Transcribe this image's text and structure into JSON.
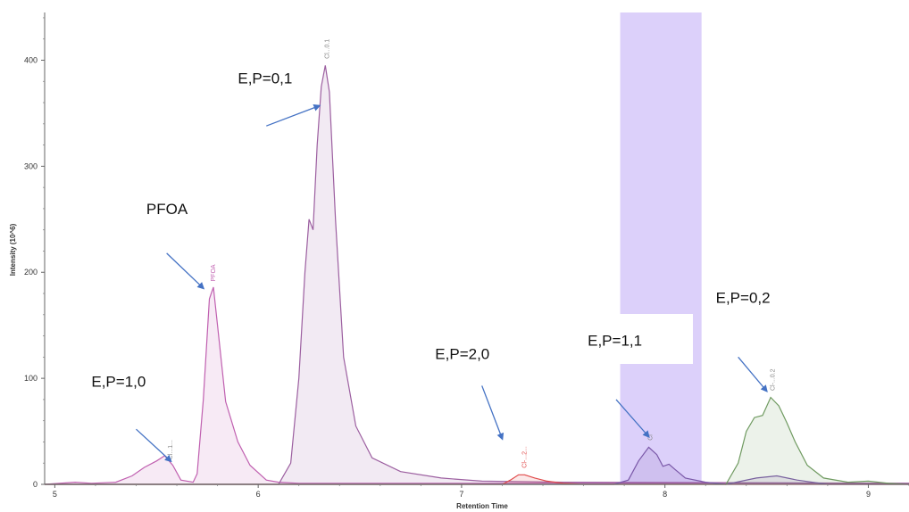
{
  "chart_data": {
    "type": "area",
    "xlabel": "Retention Time",
    "ylabel": "Intensity (10^6)",
    "xlim": [
      4.95,
      9.2
    ],
    "ylim": [
      0,
      445
    ],
    "x_ticks": [
      5,
      6,
      7,
      8,
      9
    ],
    "y_ticks": [
      0,
      100,
      200,
      300,
      400
    ],
    "grid": false,
    "highlight_band": {
      "x_range": [
        7.78,
        8.18
      ],
      "color": "#dcd0fa"
    },
    "series": [
      {
        "color": "#c060b0",
        "points": [
          [
            4.95,
            0
          ],
          [
            5.1,
            2
          ],
          [
            5.18,
            1
          ],
          [
            5.3,
            2
          ],
          [
            5.38,
            8
          ],
          [
            5.44,
            16
          ],
          [
            5.5,
            22
          ],
          [
            5.54,
            27
          ],
          [
            5.58,
            18
          ],
          [
            5.62,
            4
          ],
          [
            5.68,
            2
          ],
          [
            5.7,
            10
          ],
          [
            5.73,
            80
          ],
          [
            5.76,
            175
          ],
          [
            5.78,
            186
          ],
          [
            5.8,
            150
          ],
          [
            5.84,
            78
          ],
          [
            5.9,
            40
          ],
          [
            5.96,
            18
          ],
          [
            6.04,
            4
          ],
          [
            6.1,
            2
          ],
          [
            6.2,
            1
          ],
          [
            7.0,
            1
          ],
          [
            9.2,
            1
          ]
        ]
      },
      {
        "color": "#9c5fa0",
        "points": [
          [
            4.95,
            0
          ],
          [
            6.1,
            0
          ],
          [
            6.16,
            20
          ],
          [
            6.2,
            100
          ],
          [
            6.23,
            200
          ],
          [
            6.25,
            250
          ],
          [
            6.27,
            240
          ],
          [
            6.29,
            320
          ],
          [
            6.31,
            375
          ],
          [
            6.33,
            395
          ],
          [
            6.35,
            370
          ],
          [
            6.38,
            250
          ],
          [
            6.42,
            120
          ],
          [
            6.48,
            55
          ],
          [
            6.56,
            25
          ],
          [
            6.7,
            12
          ],
          [
            6.9,
            6
          ],
          [
            7.1,
            3
          ],
          [
            7.5,
            2
          ],
          [
            9.2,
            1
          ]
        ]
      },
      {
        "color": "#e04a4a",
        "points": [
          [
            4.95,
            0
          ],
          [
            7.2,
            0
          ],
          [
            7.24,
            4
          ],
          [
            7.28,
            9
          ],
          [
            7.31,
            9
          ],
          [
            7.36,
            6
          ],
          [
            7.42,
            3
          ],
          [
            7.5,
            1
          ],
          [
            7.6,
            0
          ],
          [
            9.2,
            0
          ]
        ]
      },
      {
        "color": "#7a58a8",
        "points": [
          [
            4.95,
            0
          ],
          [
            7.75,
            0
          ],
          [
            7.82,
            4
          ],
          [
            7.87,
            22
          ],
          [
            7.92,
            35
          ],
          [
            7.96,
            28
          ],
          [
            7.99,
            17
          ],
          [
            8.02,
            19
          ],
          [
            8.05,
            14
          ],
          [
            8.1,
            6
          ],
          [
            8.2,
            2
          ],
          [
            8.3,
            0
          ],
          [
            8.45,
            6
          ],
          [
            8.55,
            8
          ],
          [
            8.65,
            4
          ],
          [
            8.8,
            0
          ],
          [
            9.2,
            0
          ]
        ]
      },
      {
        "color": "#6f9a60",
        "points": [
          [
            4.95,
            0
          ],
          [
            8.3,
            0
          ],
          [
            8.36,
            20
          ],
          [
            8.4,
            50
          ],
          [
            8.44,
            63
          ],
          [
            8.48,
            65
          ],
          [
            8.52,
            82
          ],
          [
            8.56,
            74
          ],
          [
            8.6,
            58
          ],
          [
            8.64,
            40
          ],
          [
            8.7,
            18
          ],
          [
            8.78,
            6
          ],
          [
            8.9,
            2
          ],
          [
            9.0,
            3
          ],
          [
            9.1,
            1
          ],
          [
            9.2,
            0
          ]
        ]
      }
    ],
    "peak_tags": [
      {
        "x": 5.57,
        "y": 20,
        "text": "Cl...1...",
        "color": "#888888"
      },
      {
        "x": 5.78,
        "y": 188,
        "text": "PFOA",
        "color": "#c060b0"
      },
      {
        "x": 6.34,
        "y": 398,
        "text": "Cl...0.1",
        "color": "#888888"
      },
      {
        "x": 7.31,
        "y": 12,
        "text": "Cl-...2...",
        "color": "#e04a4a"
      },
      {
        "x": 7.93,
        "y": 38,
        "text": "Cl",
        "color": "#888888"
      },
      {
        "x": 8.53,
        "y": 85,
        "text": "Cl-...0.2",
        "color": "#888888"
      }
    ],
    "annotations": [
      {
        "text": "E,P=0,1",
        "text_x": 5.9,
        "text_y": 378,
        "arrow": [
          [
            6.04,
            338
          ],
          [
            6.3,
            357
          ]
        ]
      },
      {
        "text": "PFOA",
        "text_x": 5.45,
        "text_y": 255,
        "arrow": [
          [
            5.55,
            218
          ],
          [
            5.73,
            185
          ]
        ]
      },
      {
        "text": "E,P=1,0",
        "text_x": 5.18,
        "text_y": 92,
        "arrow": [
          [
            5.4,
            52
          ],
          [
            5.57,
            22
          ]
        ]
      },
      {
        "text": "E,P=2,0",
        "text_x": 6.87,
        "text_y": 118,
        "arrow": [
          [
            7.1,
            93
          ],
          [
            7.2,
            43
          ]
        ]
      },
      {
        "text": "E,P=1,1",
        "text_x": 7.62,
        "text_y": 131,
        "arrow": [
          [
            7.76,
            80
          ],
          [
            7.92,
            45
          ]
        ]
      },
      {
        "text": "E,P=0,2",
        "text_x": 8.25,
        "text_y": 171,
        "arrow": [
          [
            8.36,
            120
          ],
          [
            8.5,
            88
          ]
        ]
      }
    ]
  }
}
